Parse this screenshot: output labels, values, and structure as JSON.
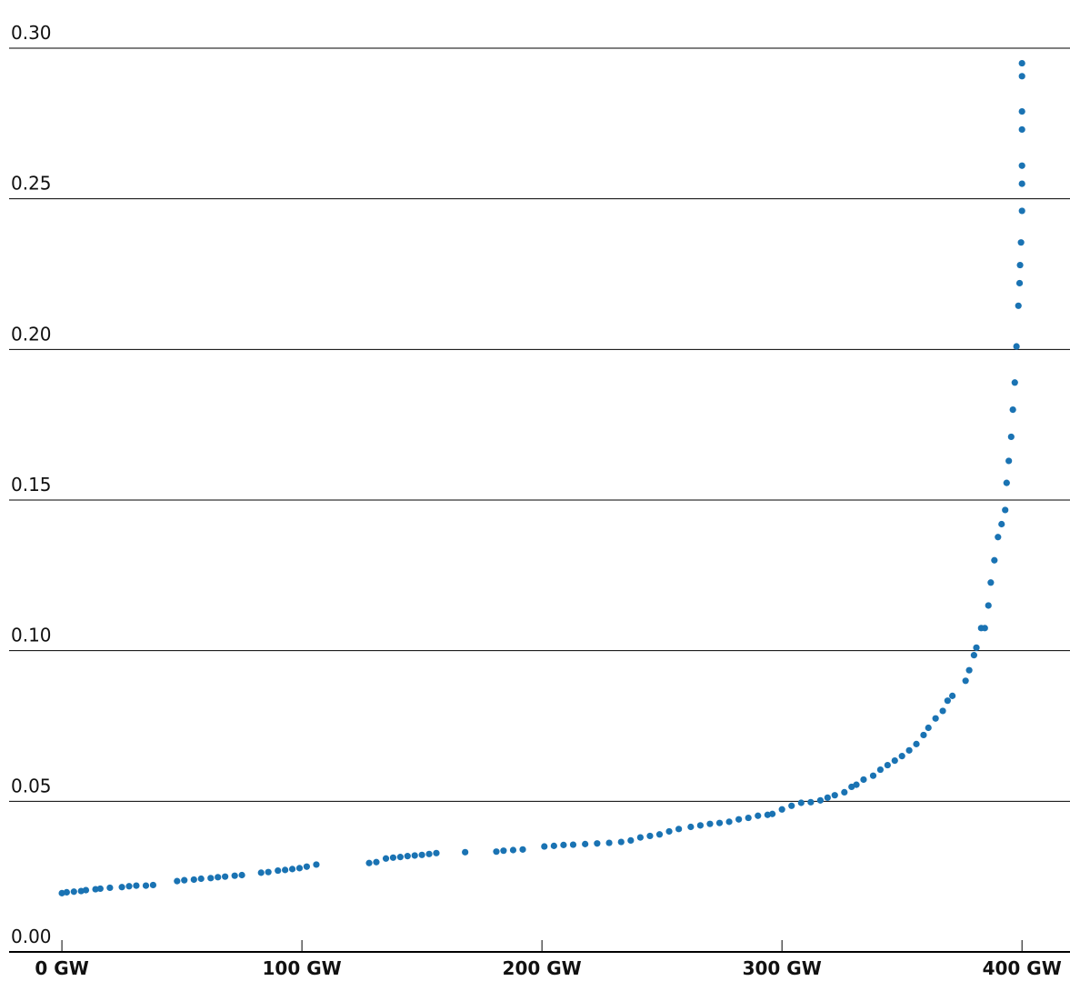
{
  "chart_data": {
    "type": "scatter",
    "color": "#1a73b3",
    "grid": true,
    "xlim": [
      -22,
      420
    ],
    "ylim": [
      0,
      0.3
    ],
    "xticks": [
      {
        "value": 0,
        "label": "0 GW"
      },
      {
        "value": 100,
        "label": "100 GW"
      },
      {
        "value": 200,
        "label": "200 GW"
      },
      {
        "value": 300,
        "label": "300 GW"
      },
      {
        "value": 400,
        "label": "400 GW"
      }
    ],
    "yticks": [
      {
        "value": 0,
        "label": "0.00"
      },
      0.05,
      {
        "value": 0.1,
        "label": "0.10"
      },
      0.15,
      {
        "value": 0.2,
        "label": "0.20"
      },
      0.25,
      {
        "value": 0.3,
        "label": "0.30"
      }
    ],
    "x": [
      0,
      2,
      5,
      8,
      10,
      14,
      16,
      20,
      25,
      28,
      31,
      35,
      38,
      48,
      51,
      55,
      58,
      62,
      65,
      68,
      72,
      75,
      83,
      86,
      90,
      93,
      96,
      99,
      102,
      106,
      128,
      131,
      135,
      138,
      141,
      144,
      147,
      150,
      153,
      156,
      168,
      181,
      184,
      188,
      192,
      201,
      205,
      209,
      213,
      218,
      223,
      228,
      233,
      237,
      241,
      245,
      249,
      253,
      257,
      262,
      266,
      270,
      274,
      278,
      282,
      286,
      290,
      294,
      296,
      300,
      304,
      308,
      312,
      316,
      319,
      322,
      326,
      329,
      331,
      334,
      338,
      341,
      344,
      347,
      350,
      353,
      356,
      359,
      361,
      364,
      367,
      369,
      371,
      376.5,
      378,
      380,
      381,
      383,
      384.5,
      386,
      387,
      388.5,
      390,
      391.5,
      393,
      393.6,
      394.5,
      395.5,
      396.2,
      397,
      397.7,
      398.5,
      399,
      399.2,
      399.6,
      400,
      400,
      400,
      400,
      400,
      400,
      400
    ],
    "y": [
      0.0195,
      0.0198,
      0.02,
      0.0202,
      0.0205,
      0.0208,
      0.021,
      0.0213,
      0.0215,
      0.0218,
      0.022,
      0.022,
      0.0222,
      0.0235,
      0.0238,
      0.024,
      0.0243,
      0.0245,
      0.0248,
      0.025,
      0.0253,
      0.0255,
      0.0263,
      0.0265,
      0.027,
      0.0272,
      0.0275,
      0.0278,
      0.0283,
      0.029,
      0.0295,
      0.0298,
      0.031,
      0.0313,
      0.0315,
      0.0318,
      0.032,
      0.0322,
      0.0325,
      0.0328,
      0.0331,
      0.0333,
      0.0336,
      0.0338,
      0.034,
      0.035,
      0.0352,
      0.0355,
      0.0356,
      0.0358,
      0.036,
      0.0362,
      0.0365,
      0.037,
      0.038,
      0.0385,
      0.039,
      0.04,
      0.0408,
      0.0415,
      0.042,
      0.0425,
      0.0428,
      0.0432,
      0.044,
      0.0445,
      0.0452,
      0.0455,
      0.0458,
      0.0473,
      0.0485,
      0.0495,
      0.0497,
      0.0503,
      0.0512,
      0.052,
      0.053,
      0.0548,
      0.0555,
      0.0572,
      0.0585,
      0.0605,
      0.062,
      0.0635,
      0.065,
      0.0669,
      0.069,
      0.072,
      0.0744,
      0.0775,
      0.08,
      0.0834,
      0.085,
      0.09,
      0.0935,
      0.0985,
      0.101,
      0.1075,
      0.1075,
      0.115,
      0.1226,
      0.13,
      0.1377,
      0.142,
      0.1467,
      0.1557,
      0.163,
      0.171,
      0.18,
      0.189,
      0.201,
      0.2145,
      0.222,
      0.228,
      0.2355,
      0.246,
      0.255,
      0.261,
      0.273,
      0.279,
      0.2907,
      0.295
    ]
  }
}
